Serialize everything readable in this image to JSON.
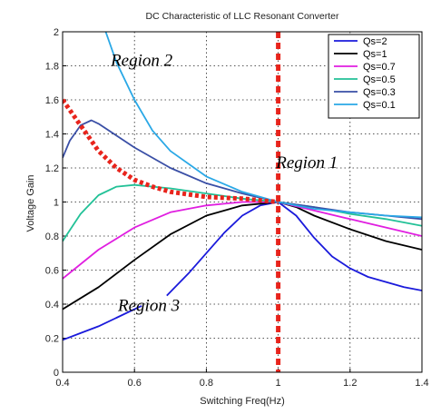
{
  "chart_data": {
    "type": "line",
    "title": "DC Characteristic of LLC Resonant Converter",
    "xlabel": "Switching Freq(Hz)",
    "ylabel": "Voltage Gain",
    "xlim": [
      0.4,
      1.4
    ],
    "ylim": [
      0,
      2
    ],
    "xticks": [
      "0.4",
      "0.6",
      "0.8",
      "1",
      "1.2",
      "1.4"
    ],
    "yticks": [
      "0",
      "0.2",
      "0.4",
      "0.6",
      "0.8",
      "1",
      "1.2",
      "1.4",
      "1.6",
      "1.8",
      "2"
    ],
    "grid": true,
    "legend_position": "top-right",
    "series": [
      {
        "name": "Qs=2",
        "color": "#1a1adb",
        "segments": [
          [
            [
              0.4,
              0.19
            ],
            [
              0.45,
              0.23
            ],
            [
              0.5,
              0.27
            ],
            [
              0.55,
              0.32
            ],
            [
              0.6,
              0.37
            ],
            [
              0.62,
              0.39
            ]
          ],
          [
            [
              0.69,
              0.45
            ],
            [
              0.75,
              0.58
            ],
            [
              0.8,
              0.7
            ],
            [
              0.85,
              0.82
            ],
            [
              0.9,
              0.92
            ],
            [
              0.95,
              0.98
            ],
            [
              1.0,
              1.0
            ],
            [
              1.05,
              0.92
            ],
            [
              1.1,
              0.79
            ],
            [
              1.15,
              0.68
            ],
            [
              1.2,
              0.61
            ],
            [
              1.25,
              0.56
            ],
            [
              1.3,
              0.53
            ],
            [
              1.35,
              0.5
            ],
            [
              1.4,
              0.48
            ]
          ]
        ]
      },
      {
        "name": "Qs=1",
        "color": "#000000",
        "segments": [
          [
            [
              0.4,
              0.37
            ],
            [
              0.5,
              0.5
            ],
            [
              0.6,
              0.66
            ],
            [
              0.7,
              0.81
            ],
            [
              0.8,
              0.92
            ],
            [
              0.9,
              0.98
            ],
            [
              1.0,
              1.0
            ],
            [
              1.05,
              0.97
            ],
            [
              1.1,
              0.92
            ],
            [
              1.2,
              0.84
            ],
            [
              1.3,
              0.77
            ],
            [
              1.4,
              0.72
            ]
          ]
        ]
      },
      {
        "name": "Qs=0.7",
        "color": "#e01ee0",
        "segments": [
          [
            [
              0.4,
              0.55
            ],
            [
              0.5,
              0.72
            ],
            [
              0.6,
              0.85
            ],
            [
              0.7,
              0.94
            ],
            [
              0.8,
              0.98
            ],
            [
              0.9,
              1.0
            ],
            [
              1.0,
              1.0
            ],
            [
              1.1,
              0.95
            ],
            [
              1.2,
              0.9
            ],
            [
              1.3,
              0.85
            ],
            [
              1.4,
              0.8
            ]
          ]
        ]
      },
      {
        "name": "Qs=0.5",
        "color": "#22c197",
        "segments": [
          [
            [
              0.4,
              0.77
            ],
            [
              0.45,
              0.93
            ],
            [
              0.5,
              1.04
            ],
            [
              0.55,
              1.09
            ],
            [
              0.6,
              1.1
            ],
            [
              0.7,
              1.08
            ],
            [
              0.8,
              1.05
            ],
            [
              0.9,
              1.02
            ],
            [
              1.0,
              1.0
            ],
            [
              1.1,
              0.97
            ],
            [
              1.2,
              0.93
            ],
            [
              1.3,
              0.9
            ],
            [
              1.4,
              0.86
            ]
          ]
        ]
      },
      {
        "name": "Qs=0.3",
        "color": "#3a4fa6",
        "segments": [
          [
            [
              0.4,
              1.26
            ],
            [
              0.42,
              1.36
            ],
            [
              0.45,
              1.45
            ],
            [
              0.48,
              1.48
            ],
            [
              0.5,
              1.46
            ],
            [
              0.55,
              1.39
            ],
            [
              0.6,
              1.32
            ],
            [
              0.7,
              1.2
            ],
            [
              0.8,
              1.11
            ],
            [
              0.9,
              1.05
            ],
            [
              1.0,
              1.0
            ],
            [
              1.1,
              0.97
            ],
            [
              1.2,
              0.94
            ],
            [
              1.3,
              0.92
            ],
            [
              1.4,
              0.9
            ]
          ]
        ]
      },
      {
        "name": "Qs=0.1",
        "color": "#2aa8e6",
        "segments": [
          [
            [
              0.52,
              2.0
            ],
            [
              0.55,
              1.82
            ],
            [
              0.6,
              1.6
            ],
            [
              0.65,
              1.42
            ],
            [
              0.7,
              1.3
            ],
            [
              0.8,
              1.15
            ],
            [
              0.9,
              1.06
            ],
            [
              1.0,
              1.0
            ],
            [
              1.1,
              0.96
            ],
            [
              1.2,
              0.94
            ],
            [
              1.3,
              0.92
            ],
            [
              1.4,
              0.91
            ]
          ]
        ]
      }
    ],
    "boundary_curve": {
      "color": "#e8241c",
      "points": [
        [
          0.4,
          1.6
        ],
        [
          0.45,
          1.45
        ],
        [
          0.5,
          1.3
        ],
        [
          0.55,
          1.2
        ],
        [
          0.6,
          1.13
        ],
        [
          0.65,
          1.09
        ],
        [
          0.7,
          1.06
        ],
        [
          0.8,
          1.03
        ],
        [
          0.9,
          1.02
        ],
        [
          1.0,
          1.0
        ]
      ]
    },
    "boundary_line": {
      "x": 1.0,
      "color": "#e8241c"
    },
    "annotations": [
      {
        "text": "Region 2",
        "x": 0.62,
        "y": 1.8
      },
      {
        "text": "Region 1",
        "x": 1.08,
        "y": 1.2
      },
      {
        "text": "Region 3",
        "x": 0.64,
        "y": 0.36
      }
    ]
  }
}
